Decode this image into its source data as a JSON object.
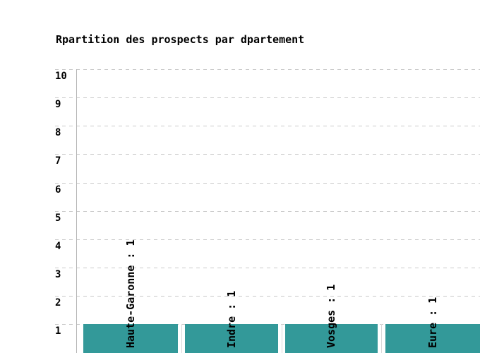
{
  "chart_data": {
    "type": "bar",
    "title": "Rpartition des prospects par dpartement",
    "categories": [
      "Haute-Garonne",
      "Indre",
      "Vosges",
      "Eure"
    ],
    "values": [
      1,
      1,
      1,
      1
    ],
    "bar_labels": [
      "Haute-Garonne : 1",
      "Indre : 1",
      "Vosges : 1",
      "Eure : 1"
    ],
    "y_ticks": [
      10,
      9,
      8,
      7,
      6,
      5,
      4,
      3,
      2,
      1
    ],
    "ylim": [
      0,
      10
    ],
    "xlabel": "",
    "ylabel": "",
    "legend_position": "none",
    "grid": "horizontal-dashed",
    "colors": {
      "bar": "#339999",
      "grid": "#c9c9c9",
      "axis": "#b5b5b5",
      "separator": "#d9d9d9",
      "text": "#000000",
      "background": "#ffffff"
    }
  }
}
